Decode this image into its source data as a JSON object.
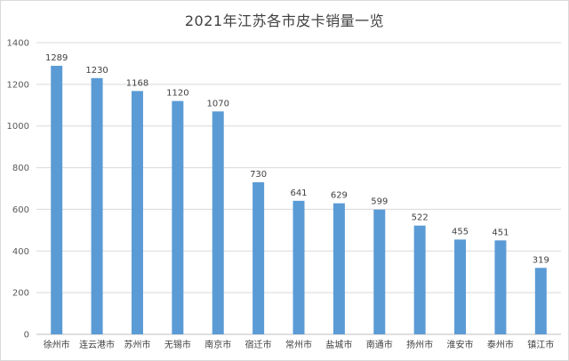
{
  "chart_data": {
    "type": "bar",
    "title": "2021年江苏各市皮卡销量一览",
    "xlabel": "",
    "ylabel": "",
    "categories": [
      "徐州市",
      "连云港市",
      "苏州市",
      "无锡市",
      "南京市",
      "宿迁市",
      "常州市",
      "盐城市",
      "南通市",
      "扬州市",
      "淮安市",
      "泰州市",
      "镇江市"
    ],
    "values": [
      1289,
      1230,
      1168,
      1120,
      1070,
      730,
      641,
      629,
      599,
      522,
      455,
      451,
      319
    ],
    "ylim": [
      0,
      1400
    ],
    "yticks": [
      0,
      200,
      400,
      600,
      800,
      1000,
      1200,
      1400
    ],
    "grid": true,
    "legend": "none",
    "bar_color": "#5b9bd5",
    "data_labels": true
  }
}
